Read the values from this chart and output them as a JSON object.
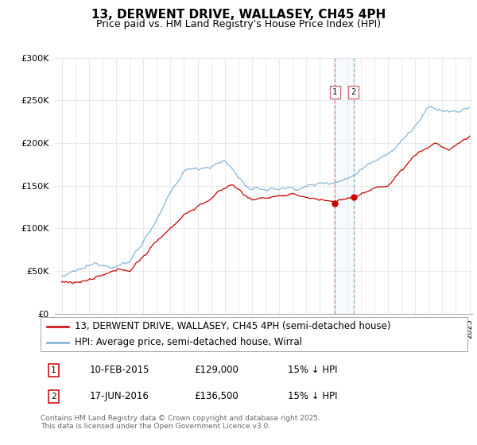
{
  "title": "13, DERWENT DRIVE, WALLASEY, CH45 4PH",
  "subtitle": "Price paid vs. HM Land Registry's House Price Index (HPI)",
  "legend_label_red": "13, DERWENT DRIVE, WALLASEY, CH45 4PH (semi-detached house)",
  "legend_label_blue": "HPI: Average price, semi-detached house, Wirral",
  "ylim": [
    0,
    300000
  ],
  "yticks": [
    0,
    50000,
    100000,
    150000,
    200000,
    250000,
    300000
  ],
  "ytick_labels": [
    "£0",
    "£50K",
    "£100K",
    "£150K",
    "£200K",
    "£250K",
    "£300K"
  ],
  "xstart_year": 1995,
  "xend_year": 2025,
  "red_color": "#cc0000",
  "blue_color": "#7aaed6",
  "sale1_year": 2015.1,
  "sale1_price": 129000,
  "sale2_year": 2016.46,
  "sale2_price": 136500,
  "annotation1": [
    "1",
    "10-FEB-2015",
    "£129,000",
    "15% ↓ HPI"
  ],
  "annotation2": [
    "2",
    "17-JUN-2016",
    "£136,500",
    "15% ↓ HPI"
  ],
  "footer": "Contains HM Land Registry data © Crown copyright and database right 2025.\nThis data is licensed under the Open Government Licence v3.0.",
  "background_color": "#ffffff",
  "grid_color": "#e0e0e0",
  "title_fontsize": 11,
  "subtitle_fontsize": 9,
  "tick_fontsize": 8,
  "legend_fontsize": 8.5
}
